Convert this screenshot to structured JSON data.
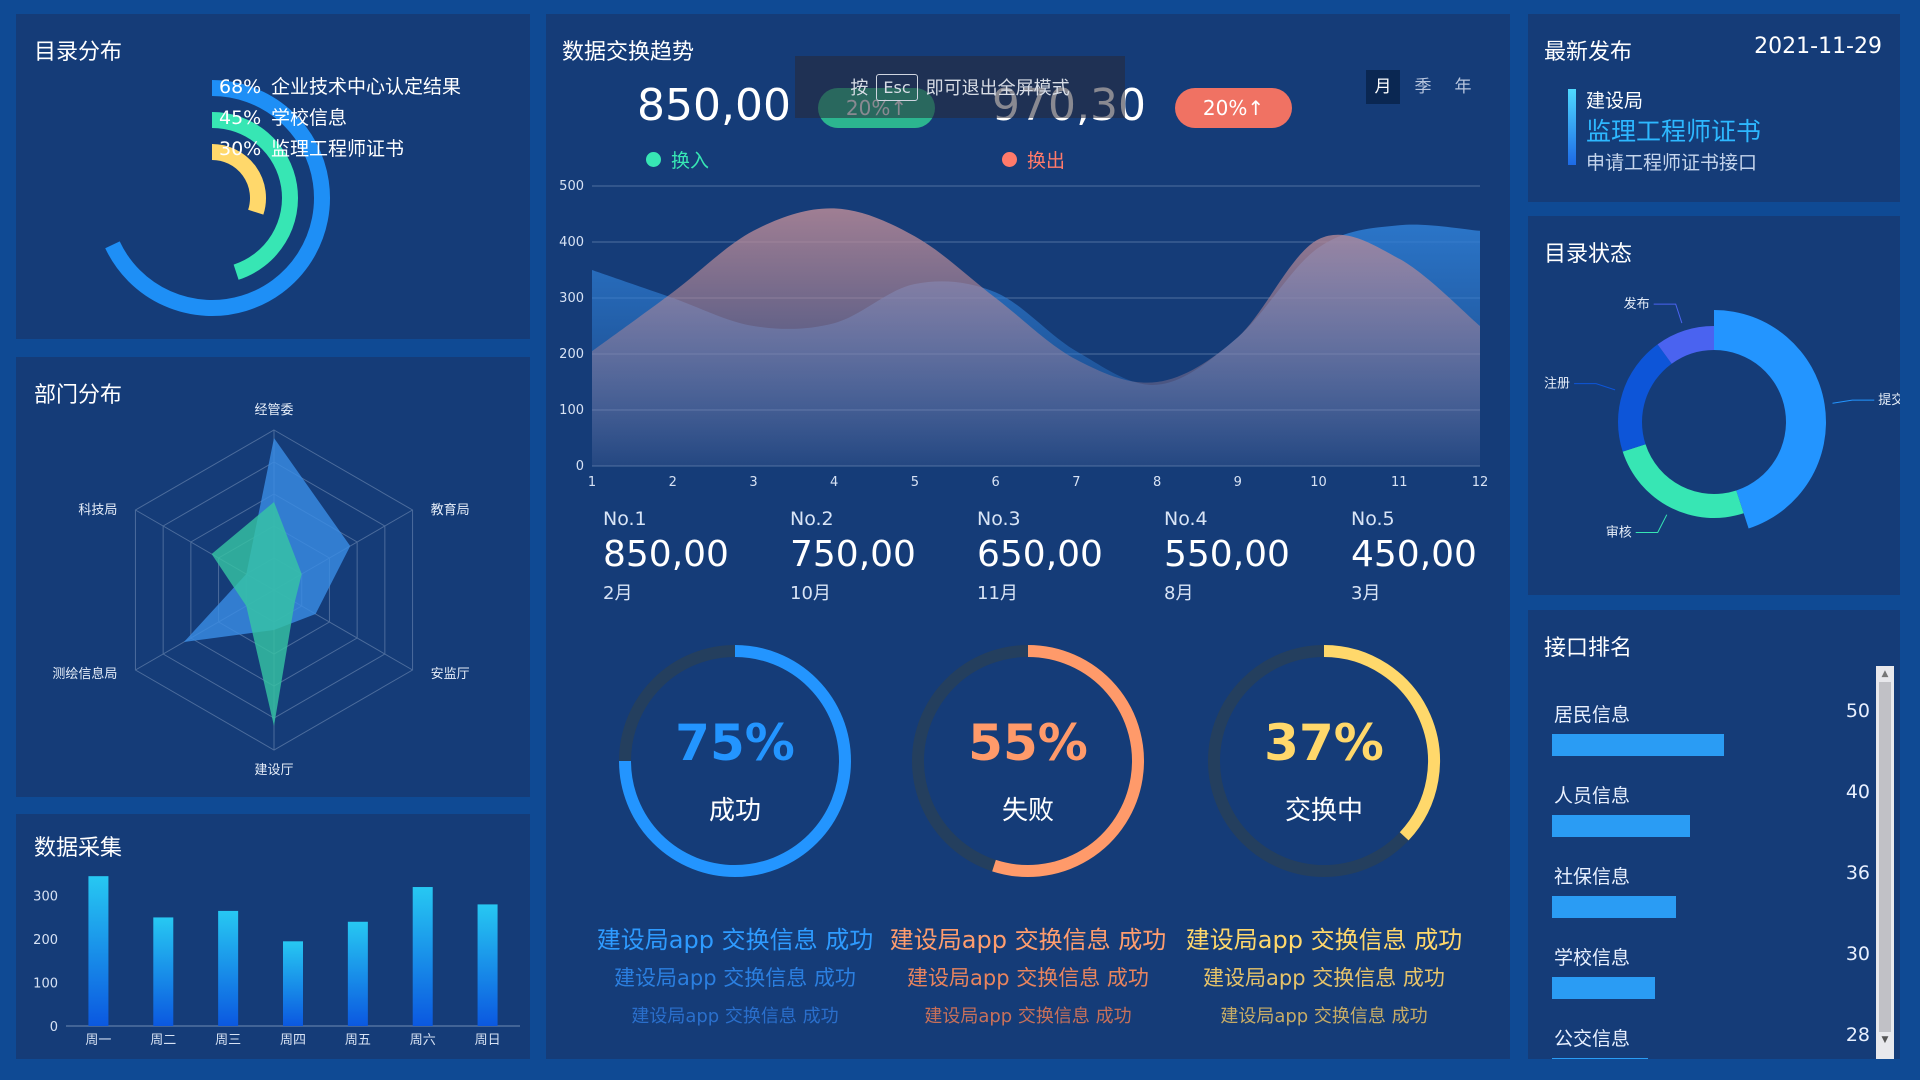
{
  "catalog_dist": {
    "title": "目录分布",
    "items": [
      {
        "percent": "68%",
        "label": "企业技术中心认定结果",
        "value": 68,
        "color": "#1e8ff6"
      },
      {
        "percent": "45%",
        "label": "学校信息",
        "value": 45,
        "color": "#37e6b4"
      },
      {
        "percent": "30%",
        "label": "监理工程师证书",
        "value": 30,
        "color": "#ffd86b"
      }
    ]
  },
  "dept_dist": {
    "title": "部门分布",
    "axes": [
      "经管委",
      "教育局",
      "安监厅",
      "建设厅",
      "测绘信息局",
      "科技局"
    ],
    "series": [
      {
        "values": [
          95,
          55,
          30,
          25,
          65,
          20
        ],
        "color": "#3a8de6"
      },
      {
        "values": [
          55,
          20,
          15,
          85,
          20,
          45
        ],
        "color": "#36c6a4"
      }
    ]
  },
  "data_collect": {
    "title": "数据采集",
    "chart_data": {
      "type": "bar",
      "categories": [
        "周一",
        "周二",
        "周三",
        "周四",
        "周五",
        "周六",
        "周日"
      ],
      "values": [
        345,
        250,
        265,
        195,
        240,
        320,
        280
      ],
      "ylim": [
        0,
        350
      ],
      "yticks": [
        "0",
        "100",
        "200",
        "300"
      ]
    }
  },
  "exchange_trend": {
    "title": "数据交换趋势",
    "overlay": {
      "prefix": "按",
      "key": "Esc",
      "suffix": "即可退出全屏模式"
    },
    "in_value": "850,00",
    "in_badge": "20%↑",
    "out_value": "970,30",
    "out_badge": "20%↑",
    "legend_in": "换入",
    "legend_out": "换出",
    "periods": [
      "月",
      "季",
      "年"
    ],
    "active_period": "月",
    "chart_data": {
      "type": "area",
      "x": [
        1,
        2,
        3,
        4,
        5,
        6,
        7,
        8,
        9,
        10,
        11,
        12
      ],
      "xticks": [
        "1",
        "2",
        "3",
        "4",
        "5",
        "6",
        "7",
        "8",
        "9",
        "10",
        "11",
        "12"
      ],
      "yticks": [
        "0",
        "100",
        "200",
        "300",
        "400",
        "500"
      ],
      "ylim": [
        0,
        500
      ],
      "series": [
        {
          "name": "换入",
          "values": [
            350,
            300,
            250,
            255,
            325,
            310,
            205,
            145,
            230,
            390,
            430,
            420
          ],
          "color": "#2f7fd6"
        },
        {
          "name": "换出",
          "values": [
            205,
            310,
            420,
            460,
            410,
            300,
            190,
            150,
            230,
            405,
            370,
            250
          ],
          "color": "#b88a98"
        }
      ]
    }
  },
  "top5": [
    {
      "rank": "No.1",
      "value": "850,00",
      "month": "2月"
    },
    {
      "rank": "No.2",
      "value": "750,00",
      "month": "10月"
    },
    {
      "rank": "No.3",
      "value": "650,00",
      "month": "11月"
    },
    {
      "rank": "No.4",
      "value": "550,00",
      "month": "8月"
    },
    {
      "rank": "No.5",
      "value": "450,00",
      "month": "3月"
    }
  ],
  "gauges": [
    {
      "percent": "75%",
      "value": 75,
      "label": "成功",
      "color": "#2395ff",
      "lines": [
        "建设局app 交换信息 成功",
        "建设局app 交换信息 成功",
        "建设局app 交换信息 成功"
      ],
      "line_colors": [
        "#2e9bff",
        "#2b7fe0",
        "#2a6fcc"
      ]
    },
    {
      "percent": "55%",
      "value": 55,
      "label": "失败",
      "color": "#ff9a6a",
      "lines": [
        "建设局app 交换信息 成功",
        "建设局app 交换信息 成功",
        "建设局app 交换信息 成功"
      ],
      "line_colors": [
        "#ff9d6e",
        "#e8845e",
        "#c7705a"
      ]
    },
    {
      "percent": "37%",
      "value": 37,
      "label": "交换中",
      "color": "#ffd86b",
      "lines": [
        "建设局app 交换信息 成功",
        "建设局app 交换信息 成功",
        "建设局app 交换信息 成功"
      ],
      "line_colors": [
        "#ffd86b",
        "#e6c36a",
        "#c7ac66"
      ]
    }
  ],
  "latest": {
    "title": "最新发布",
    "date": "2021-11-29",
    "org": "建设局",
    "headline": "监理工程师证书",
    "desc": "申请工程师证书接口"
  },
  "catalog_status": {
    "title": "目录状态",
    "chart_data": {
      "type": "pie",
      "labels": [
        "提交",
        "审核",
        "注册",
        "发布"
      ],
      "values": [
        45,
        25,
        20,
        10
      ],
      "colors": [
        "#2395ff",
        "#37e6b4",
        "#0d55d8",
        "#4a63f0"
      ]
    }
  },
  "api_rank": {
    "title": "接口排名",
    "items": [
      {
        "label": "居民信息",
        "value": "50",
        "num": 50
      },
      {
        "label": "人员信息",
        "value": "40",
        "num": 40
      },
      {
        "label": "社保信息",
        "value": "36",
        "num": 36
      },
      {
        "label": "学校信息",
        "value": "30",
        "num": 30
      },
      {
        "label": "公交信息",
        "value": "28",
        "num": 28
      }
    ]
  }
}
